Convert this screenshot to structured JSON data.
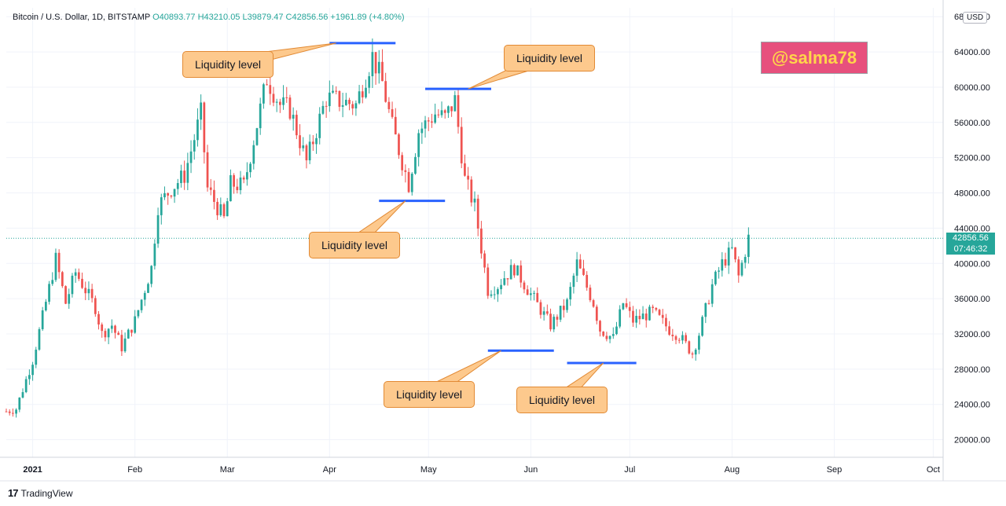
{
  "header": {
    "symbol": "Bitcoin / U.S. Dollar, 1D, BITSTAMP",
    "ohlc": "O40893.77 H43210.05 L39879.47 C42856.56 +1961.89 (+4.80%)"
  },
  "currency_badge": "USD",
  "last_price": {
    "price": "42856.56",
    "countdown": "07:46:32",
    "color": "#26a69a"
  },
  "watermark": {
    "text": "@salma78",
    "bg": "#e7507d",
    "fg": "#ffd54a"
  },
  "brand": {
    "name": "TradingView",
    "icon": "tradingview-logo-icon"
  },
  "callout_color": "#fdc98d",
  "level_color": "#2962ff",
  "chart_data": {
    "type": "candlestick",
    "title": "Bitcoin / U.S. Dollar, 1D, BITSTAMP",
    "ylim": [
      18000,
      69000
    ],
    "y_ticks": [
      20000,
      24000,
      28000,
      32000,
      36000,
      40000,
      44000,
      48000,
      52000,
      56000,
      60000,
      64000,
      68000
    ],
    "y_tick_labels": [
      "20000.00",
      "24000.00",
      "28000.00",
      "32000.00",
      "36000.00",
      "40000.00",
      "44000.00",
      "48000.00",
      "52000.00",
      "56000.00",
      "60000.00",
      "64000.00",
      "68000.00"
    ],
    "x_start": "2020-12-24",
    "x_end": "2021-10-04",
    "x_ticks": [
      {
        "date": "2021-01-01",
        "label": "2021",
        "bold": true
      },
      {
        "date": "2021-02-01",
        "label": "Feb"
      },
      {
        "date": "2021-03-01",
        "label": "Mar"
      },
      {
        "date": "2021-04-01",
        "label": "Apr"
      },
      {
        "date": "2021-05-01",
        "label": "May"
      },
      {
        "date": "2021-06-01",
        "label": "Jun"
      },
      {
        "date": "2021-07-01",
        "label": "Jul"
      },
      {
        "date": "2021-08-01",
        "label": "Aug"
      },
      {
        "date": "2021-09-01",
        "label": "Sep"
      },
      {
        "date": "2021-10-01",
        "label": "Oct"
      }
    ],
    "grid": true,
    "colors": {
      "up": "#26a69a",
      "down": "#ef5350"
    },
    "close_path": [
      [
        "2020-12-24",
        23200
      ],
      [
        "2020-12-27",
        23500
      ],
      [
        "2021-01-01",
        29000
      ],
      [
        "2021-01-08",
        40500
      ],
      [
        "2021-01-11",
        35500
      ],
      [
        "2021-01-14",
        39000
      ],
      [
        "2021-01-20",
        35000
      ],
      [
        "2021-01-22",
        32000
      ],
      [
        "2021-01-25",
        33000
      ],
      [
        "2021-01-28",
        30500
      ],
      [
        "2021-02-01",
        33500
      ],
      [
        "2021-02-06",
        39500
      ],
      [
        "2021-02-08",
        46500
      ],
      [
        "2021-02-12",
        48500
      ],
      [
        "2021-02-16",
        50000
      ],
      [
        "2021-02-21",
        57000
      ],
      [
        "2021-02-23",
        48500
      ],
      [
        "2021-02-28",
        45000
      ],
      [
        "2021-03-02",
        49000
      ],
      [
        "2021-03-06",
        48800
      ],
      [
        "2021-03-13",
        61000
      ],
      [
        "2021-03-17",
        58000
      ],
      [
        "2021-03-20",
        57500
      ],
      [
        "2021-03-25",
        51500
      ],
      [
        "2021-03-31",
        58800
      ],
      [
        "2021-04-09",
        58000
      ],
      [
        "2021-04-14",
        63500
      ],
      [
        "2021-04-17",
        60500
      ],
      [
        "2021-04-20",
        55500
      ],
      [
        "2021-04-25",
        49000
      ],
      [
        "2021-04-28",
        55000
      ],
      [
        "2021-05-03",
        57000
      ],
      [
        "2021-05-06",
        56500
      ],
      [
        "2021-05-09",
        58500
      ],
      [
        "2021-05-12",
        49500
      ],
      [
        "2021-05-15",
        46500
      ],
      [
        "2021-05-19",
        37000
      ],
      [
        "2021-05-22",
        37500
      ],
      [
        "2021-05-24",
        38500
      ],
      [
        "2021-05-27",
        39500
      ],
      [
        "2021-06-01",
        36500
      ],
      [
        "2021-06-07",
        33000
      ],
      [
        "2021-06-12",
        35500
      ],
      [
        "2021-06-15",
        40000
      ],
      [
        "2021-06-20",
        35500
      ],
      [
        "2021-06-22",
        32500
      ],
      [
        "2021-06-26",
        31500
      ],
      [
        "2021-06-29",
        35500
      ],
      [
        "2021-07-02",
        33500
      ],
      [
        "2021-07-08",
        34500
      ],
      [
        "2021-07-13",
        32500
      ],
      [
        "2021-07-16",
        31800
      ],
      [
        "2021-07-20",
        29800
      ],
      [
        "2021-07-22",
        32000
      ],
      [
        "2021-07-26",
        37500
      ],
      [
        "2021-07-29",
        40000
      ],
      [
        "2021-08-01",
        41500
      ],
      [
        "2021-08-03",
        38500
      ],
      [
        "2021-08-06",
        42856
      ]
    ],
    "liquidity_levels": [
      {
        "label": "Liquidity level",
        "price": 65000,
        "from": "2021-04-01",
        "to": "2021-04-21",
        "callout_anchor": "2021-04-03"
      },
      {
        "label": "Liquidity level",
        "price": 59800,
        "from": "2021-04-30",
        "to": "2021-05-20",
        "callout_anchor": "2021-05-13"
      },
      {
        "label": "Liquidity level",
        "price": 47100,
        "from": "2021-04-16",
        "to": "2021-05-06",
        "callout_anchor": "2021-04-24"
      },
      {
        "label": "Liquidity level",
        "price": 30100,
        "from": "2021-05-19",
        "to": "2021-06-08",
        "callout_anchor": "2021-05-23"
      },
      {
        "label": "Liquidity level",
        "price": 28700,
        "from": "2021-06-12",
        "to": "2021-07-03",
        "callout_anchor": "2021-06-23"
      }
    ]
  }
}
